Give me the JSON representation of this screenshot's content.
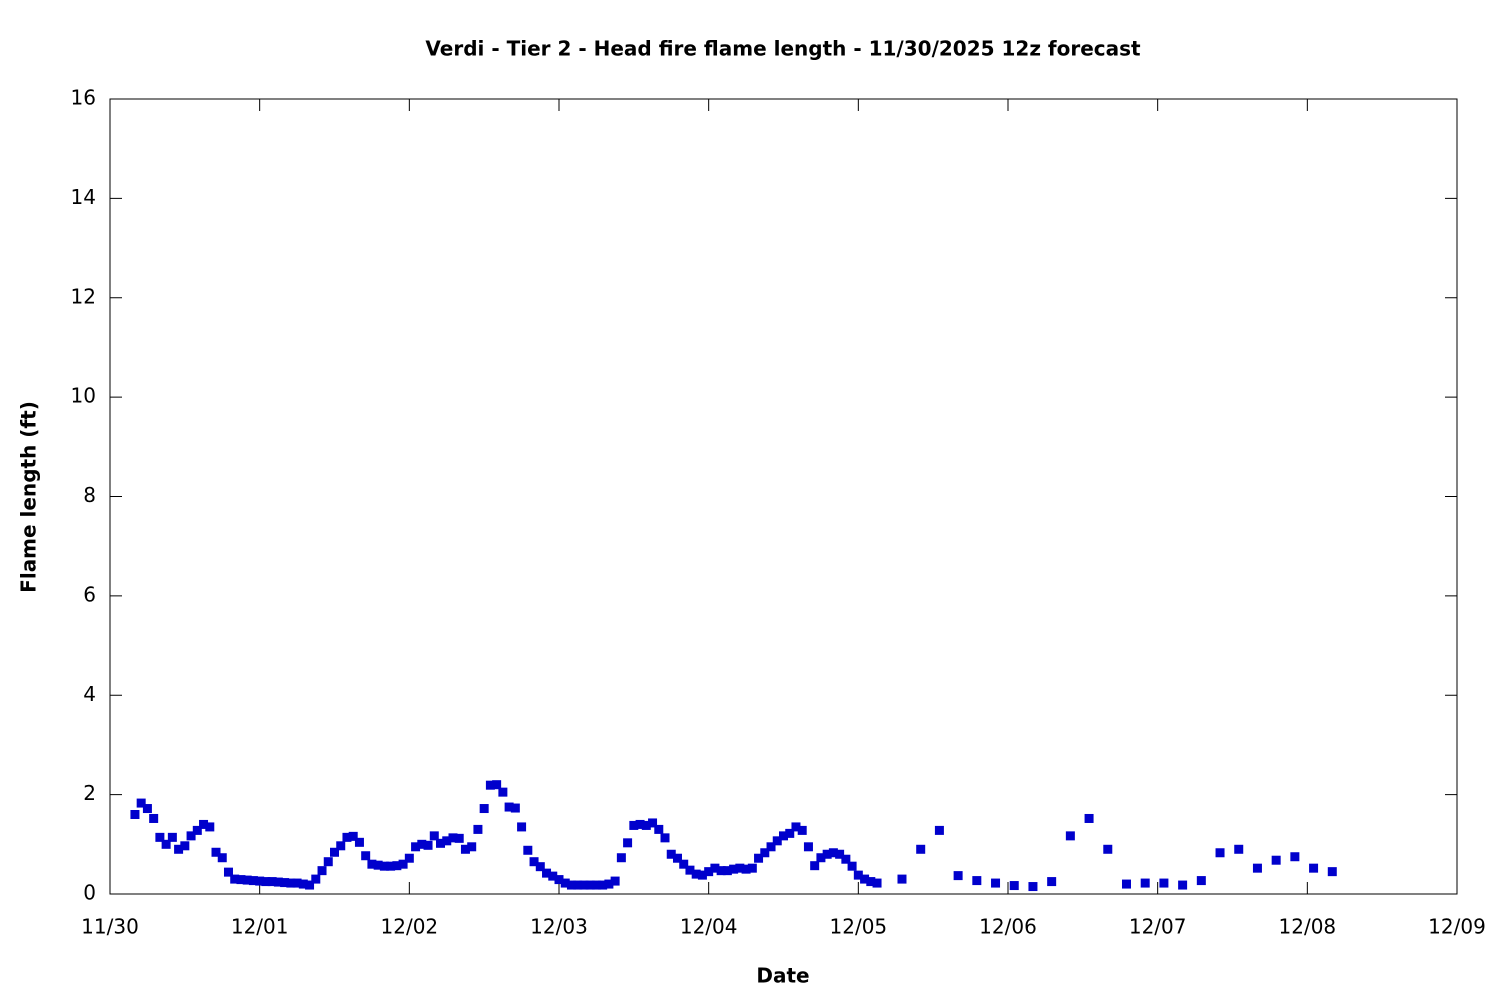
{
  "chart_data": {
    "type": "scatter",
    "title": "Verdi - Tier 2 - Head fire flame length - 11/30/2025 12z forecast",
    "x_label": "Date",
    "y_label": "Flame length (ft)",
    "color": "#0000cc",
    "x": [
      0.1667,
      0.2083,
      0.25,
      0.2917,
      0.3333,
      0.375,
      0.4167,
      0.4583,
      0.5,
      0.5417,
      0.5833,
      0.625,
      0.6667,
      0.7083,
      0.75,
      0.7917,
      0.8333,
      0.875,
      0.9167,
      0.9583,
      1,
      1.0417,
      1.0833,
      1.125,
      1.1667,
      1.2083,
      1.25,
      1.2917,
      1.3333,
      1.375,
      1.4167,
      1.4583,
      1.5,
      1.5417,
      1.5833,
      1.625,
      1.6667,
      1.7083,
      1.75,
      1.7917,
      1.8333,
      1.875,
      1.9167,
      1.9583,
      2,
      2.0417,
      2.0833,
      2.125,
      2.1667,
      2.2083,
      2.25,
      2.2917,
      2.3333,
      2.375,
      2.4167,
      2.4583,
      2.5,
      2.5417,
      2.5833,
      2.625,
      2.6667,
      2.7083,
      2.75,
      2.7917,
      2.8333,
      2.875,
      2.9167,
      2.9583,
      3,
      3.0417,
      3.0833,
      3.125,
      3.1667,
      3.2083,
      3.25,
      3.2917,
      3.3333,
      3.375,
      3.4167,
      3.4583,
      3.5,
      3.5417,
      3.5833,
      3.625,
      3.6667,
      3.7083,
      3.75,
      3.7917,
      3.8333,
      3.875,
      3.9167,
      3.9583,
      4,
      4.0417,
      4.0833,
      4.125,
      4.1667,
      4.2083,
      4.25,
      4.2917,
      4.3333,
      4.375,
      4.4167,
      4.4583,
      4.5,
      4.5417,
      4.5833,
      4.625,
      4.6667,
      4.7083,
      4.75,
      4.7917,
      4.8333,
      4.875,
      4.9167,
      4.9583,
      5,
      5.0417,
      5.0833,
      5.125,
      5.2917,
      5.4167,
      5.5417,
      5.6667,
      5.7917,
      5.9167,
      6.0417,
      6.1667,
      6.2917,
      6.4167,
      6.5417,
      6.6667,
      6.7917,
      6.9167,
      7.0417,
      7.1667,
      7.2917,
      7.4167,
      7.5417,
      7.6667,
      7.7917,
      7.9167,
      8.0417,
      8.1667
    ],
    "values": [
      1.6,
      1.83,
      1.72,
      1.52,
      1.14,
      1.0,
      1.14,
      0.9,
      0.97,
      1.17,
      1.28,
      1.4,
      1.35,
      0.84,
      0.73,
      0.44,
      0.3,
      0.29,
      0.28,
      0.27,
      0.26,
      0.25,
      0.25,
      0.24,
      0.23,
      0.22,
      0.22,
      0.2,
      0.18,
      0.3,
      0.47,
      0.65,
      0.84,
      0.97,
      1.14,
      1.16,
      1.04,
      0.77,
      0.6,
      0.58,
      0.56,
      0.56,
      0.57,
      0.6,
      0.72,
      0.95,
      1.0,
      0.98,
      1.17,
      1.02,
      1.07,
      1.13,
      1.12,
      0.9,
      0.95,
      1.3,
      1.72,
      2.19,
      2.2,
      2.05,
      1.75,
      1.73,
      1.35,
      0.88,
      0.65,
      0.55,
      0.42,
      0.36,
      0.29,
      0.22,
      0.18,
      0.18,
      0.18,
      0.18,
      0.18,
      0.18,
      0.2,
      0.26,
      0.73,
      1.03,
      1.38,
      1.4,
      1.38,
      1.43,
      1.3,
      1.13,
      0.8,
      0.72,
      0.6,
      0.48,
      0.4,
      0.38,
      0.45,
      0.52,
      0.47,
      0.47,
      0.5,
      0.52,
      0.5,
      0.52,
      0.72,
      0.83,
      0.95,
      1.07,
      1.17,
      1.22,
      1.35,
      1.28,
      0.95,
      0.57,
      0.73,
      0.8,
      0.83,
      0.8,
      0.7,
      0.56,
      0.38,
      0.3,
      0.25,
      0.22,
      0.3,
      0.9,
      1.28,
      0.37,
      0.27,
      0.22,
      0.17,
      0.15,
      0.25,
      1.17,
      1.52,
      0.9,
      0.2,
      0.22,
      0.22,
      0.18,
      0.27,
      0.83,
      0.9,
      0.52,
      0.68,
      0.75,
      0.52,
      0.45
    ],
    "xlim": [
      0,
      9
    ],
    "xticks": [
      {
        "value": 0,
        "label": "11/30"
      },
      {
        "value": 1,
        "label": "12/01"
      },
      {
        "value": 2,
        "label": "12/02"
      },
      {
        "value": 3,
        "label": "12/03"
      },
      {
        "value": 4,
        "label": "12/04"
      },
      {
        "value": 5,
        "label": "12/05"
      },
      {
        "value": 6,
        "label": "12/06"
      },
      {
        "value": 7,
        "label": "12/07"
      },
      {
        "value": 8,
        "label": "12/08"
      },
      {
        "value": 9,
        "label": "12/09"
      }
    ],
    "ylim": [
      0,
      16
    ],
    "yticks": [
      0,
      2,
      4,
      6,
      8,
      10,
      12,
      14,
      16
    ],
    "grid": false
  }
}
